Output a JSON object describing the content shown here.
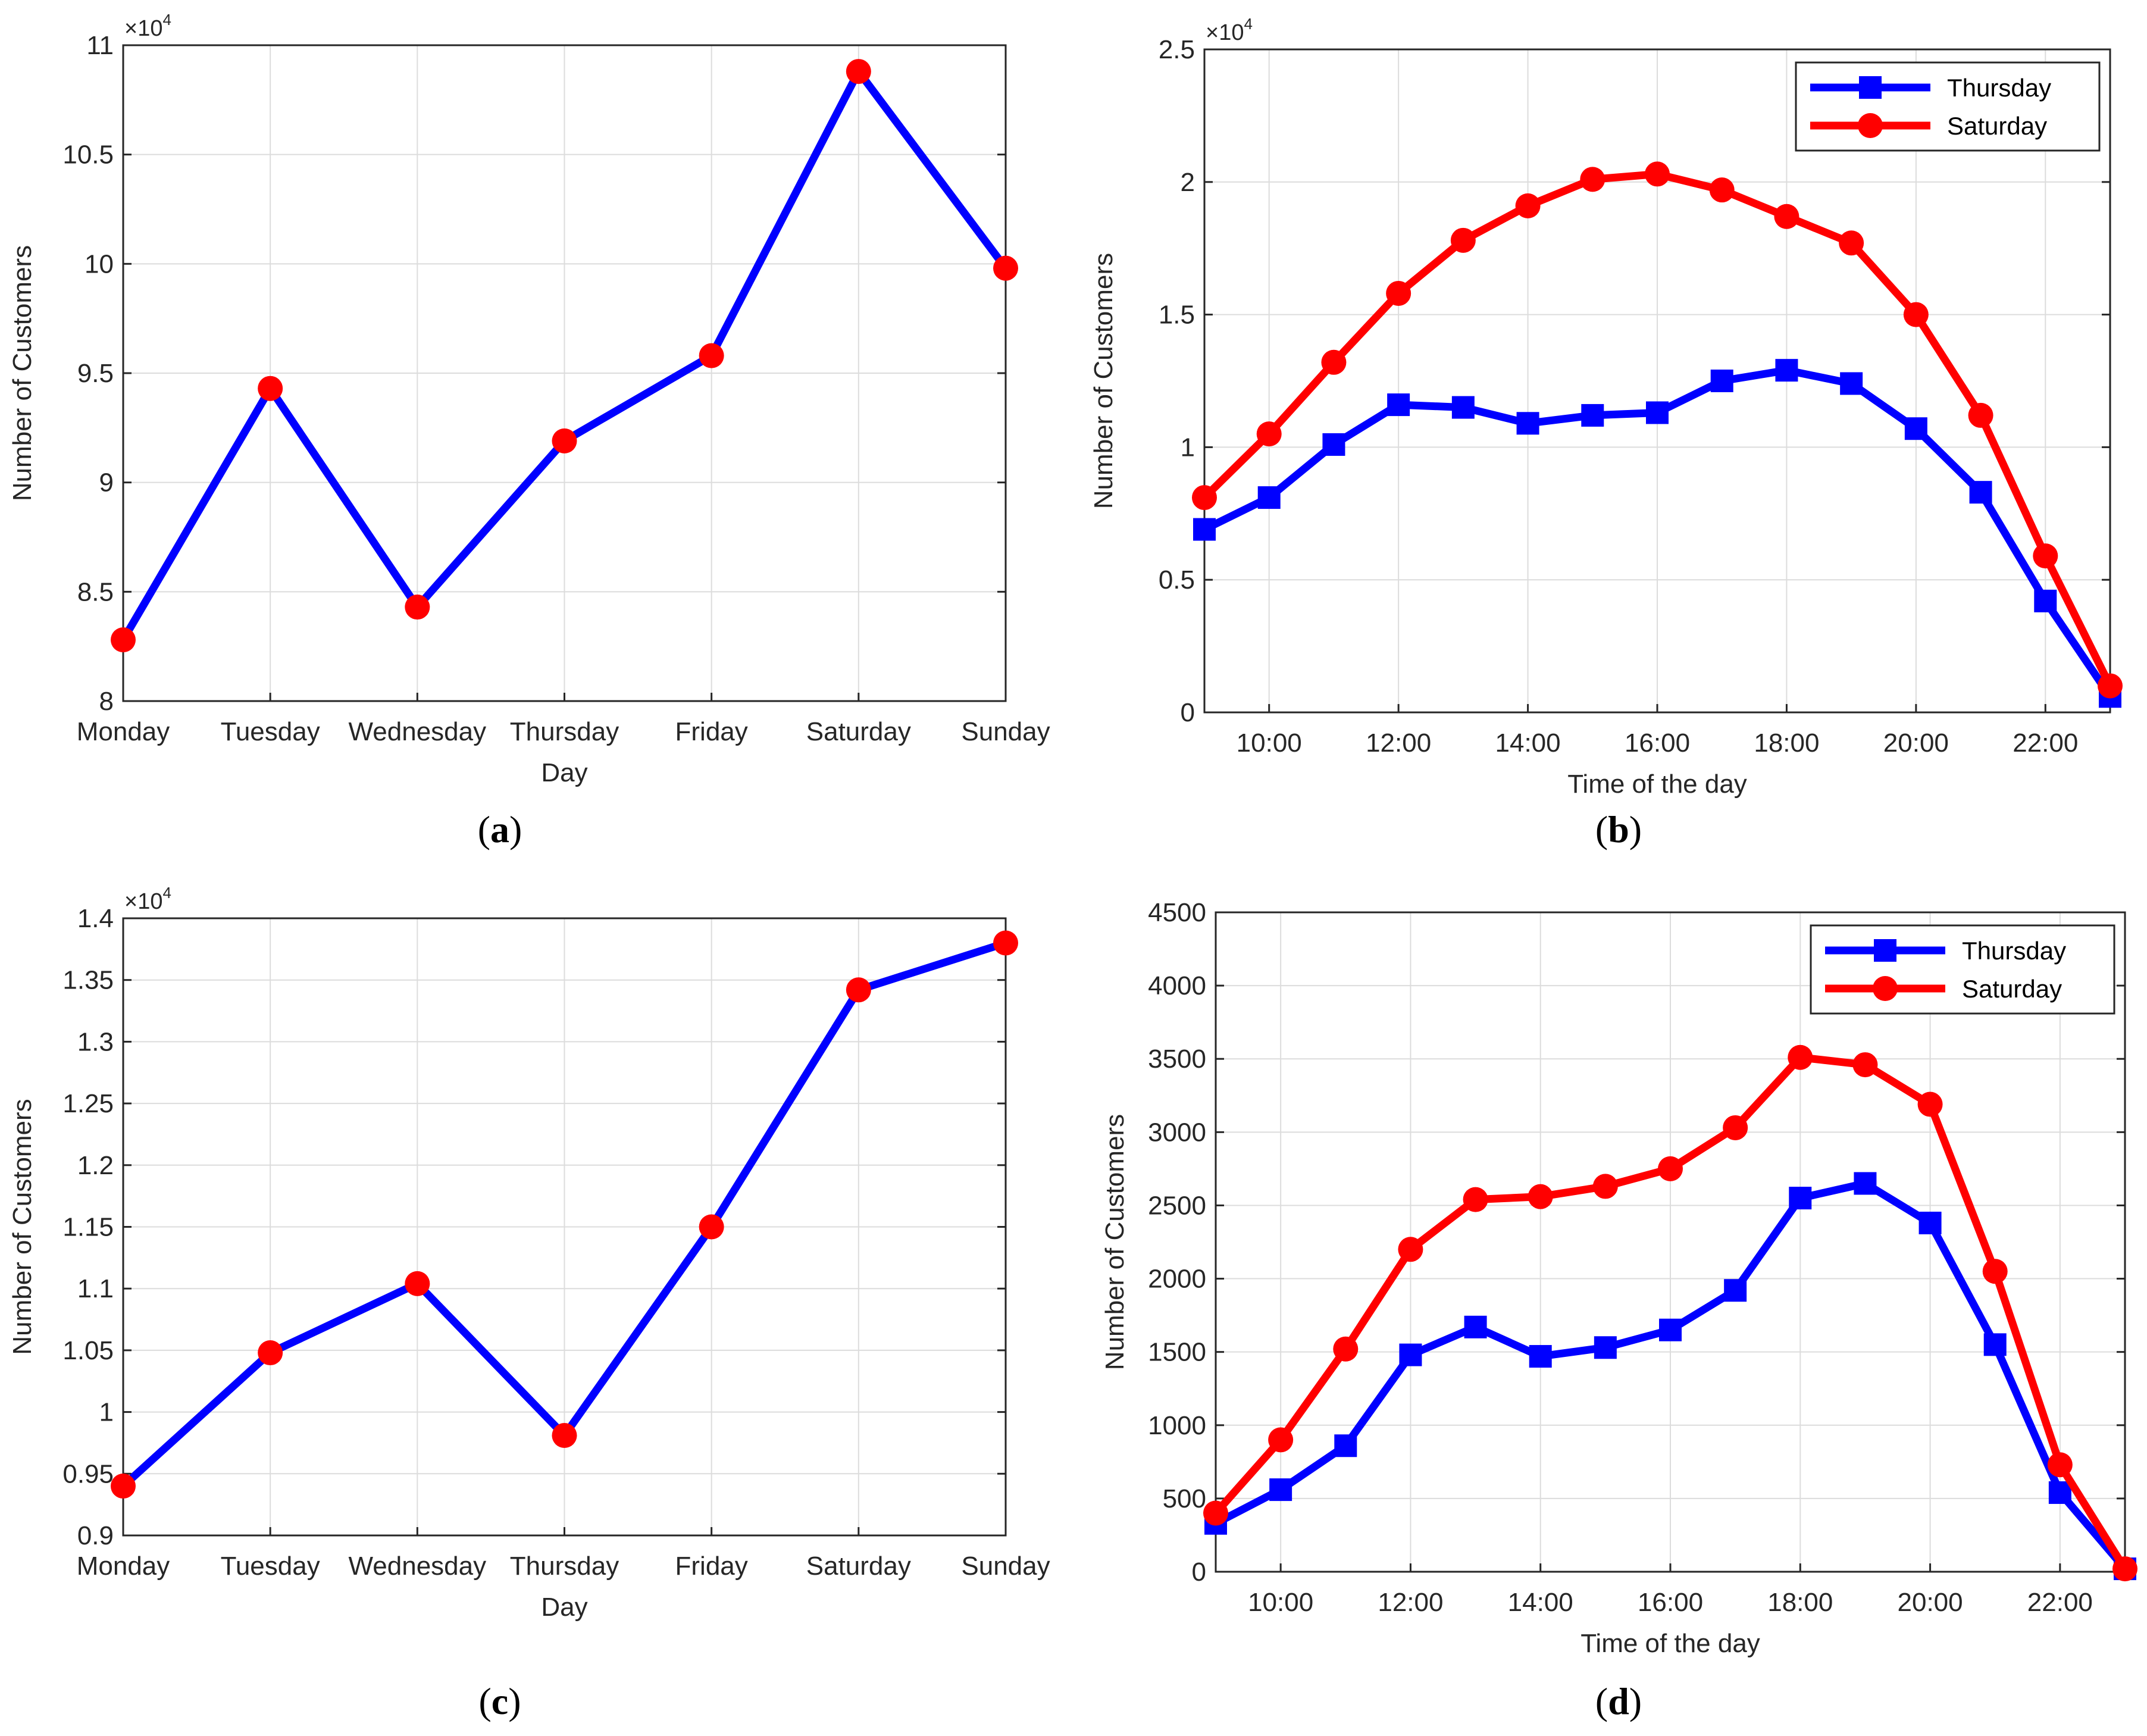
{
  "chart_data": [
    {
      "id": "a",
      "type": "line",
      "caption": "a",
      "xlabel": "Day",
      "ylabel": "Number of Customers",
      "exponent_label": "10",
      "exponent_power": "4",
      "categories": [
        "Monday",
        "Tuesday",
        "Wednesday",
        "Thursday",
        "Friday",
        "Saturday",
        "Sunday"
      ],
      "ylim": [
        8,
        11
      ],
      "yticks": [
        8,
        8.5,
        9,
        9.5,
        10,
        10.5,
        11
      ],
      "ytick_labels": [
        "8",
        "8.5",
        "9",
        "9.5",
        "10",
        "10.5",
        "11"
      ],
      "grid": true,
      "series": [
        {
          "name": "Customers",
          "color": "#0000ff",
          "marker_color": "#ff0000",
          "marker": "circle",
          "values": [
            8.28,
            9.43,
            8.43,
            9.19,
            9.58,
            10.88,
            9.98
          ]
        }
      ]
    },
    {
      "id": "b",
      "type": "line",
      "caption": "b",
      "xlabel": "Time of the day",
      "ylabel": "Number of Customers",
      "exponent_label": "10",
      "exponent_power": "4",
      "x": [
        9,
        10,
        11,
        12,
        13,
        14,
        15,
        16,
        17,
        18,
        19,
        20,
        21,
        22,
        23
      ],
      "xlim": [
        9,
        23
      ],
      "xticks": [
        10,
        12,
        14,
        16,
        18,
        20,
        22
      ],
      "xtick_labels": [
        "10:00",
        "12:00",
        "14:00",
        "16:00",
        "18:00",
        "20:00",
        "22:00"
      ],
      "ylim": [
        0,
        2.5
      ],
      "yticks": [
        0,
        0.5,
        1,
        1.5,
        2,
        2.5
      ],
      "ytick_labels": [
        "0",
        "0.5",
        "1",
        "1.5",
        "2",
        "2.5"
      ],
      "grid": true,
      "legend": "top-right",
      "series": [
        {
          "name": "Thursday",
          "color": "#0000ff",
          "marker": "square",
          "values": [
            0.69,
            0.81,
            1.01,
            1.16,
            1.15,
            1.09,
            1.12,
            1.13,
            1.25,
            1.29,
            1.24,
            1.07,
            0.83,
            0.42,
            0.06
          ]
        },
        {
          "name": "Saturday",
          "color": "#ff0000",
          "marker": "circle",
          "values": [
            0.81,
            1.05,
            1.32,
            1.58,
            1.78,
            1.91,
            2.01,
            2.03,
            1.97,
            1.87,
            1.77,
            1.5,
            1.12,
            0.59,
            0.1
          ]
        }
      ]
    },
    {
      "id": "c",
      "type": "line",
      "caption": "c",
      "xlabel": "Day",
      "ylabel": "Number of Customers",
      "exponent_label": "10",
      "exponent_power": "4",
      "categories": [
        "Monday",
        "Tuesday",
        "Wednesday",
        "Thursday",
        "Friday",
        "Saturday",
        "Sunday"
      ],
      "ylim": [
        0.9,
        1.4
      ],
      "yticks": [
        0.9,
        0.95,
        1,
        1.05,
        1.1,
        1.15,
        1.2,
        1.25,
        1.3,
        1.35,
        1.4
      ],
      "ytick_labels": [
        "0.9",
        "0.95",
        "1",
        "1.05",
        "1.1",
        "1.15",
        "1.2",
        "1.25",
        "1.3",
        "1.35",
        "1.4"
      ],
      "grid": true,
      "series": [
        {
          "name": "Customers",
          "color": "#0000ff",
          "marker_color": "#ff0000",
          "marker": "circle",
          "values": [
            0.94,
            1.048,
            1.104,
            0.981,
            1.15,
            1.342,
            1.38
          ]
        }
      ]
    },
    {
      "id": "d",
      "type": "line",
      "caption": "d",
      "xlabel": "Time of the day",
      "ylabel": "Number of Customers",
      "x": [
        9,
        10,
        11,
        12,
        13,
        14,
        15,
        16,
        17,
        18,
        19,
        20,
        21,
        22,
        23
      ],
      "xlim": [
        9,
        23
      ],
      "xticks": [
        10,
        12,
        14,
        16,
        18,
        20,
        22
      ],
      "xtick_labels": [
        "10:00",
        "12:00",
        "14:00",
        "16:00",
        "18:00",
        "20:00",
        "22:00"
      ],
      "ylim": [
        0,
        4500
      ],
      "yticks": [
        0,
        500,
        1000,
        1500,
        2000,
        2500,
        3000,
        3500,
        4000,
        4500
      ],
      "ytick_labels": [
        "0",
        "500",
        "1000",
        "1500",
        "2000",
        "2500",
        "3000",
        "3500",
        "4000",
        "4500"
      ],
      "grid": true,
      "legend": "top-right",
      "series": [
        {
          "name": "Thursday",
          "color": "#0000ff",
          "marker": "square",
          "values": [
            330,
            560,
            860,
            1480,
            1670,
            1470,
            1530,
            1650,
            1920,
            2550,
            2650,
            2380,
            1550,
            540,
            20
          ]
        },
        {
          "name": "Saturday",
          "color": "#ff0000",
          "marker": "circle",
          "values": [
            400,
            900,
            1520,
            2200,
            2540,
            2560,
            2630,
            2750,
            3030,
            3510,
            3460,
            3190,
            2050,
            730,
            20
          ]
        }
      ]
    }
  ]
}
